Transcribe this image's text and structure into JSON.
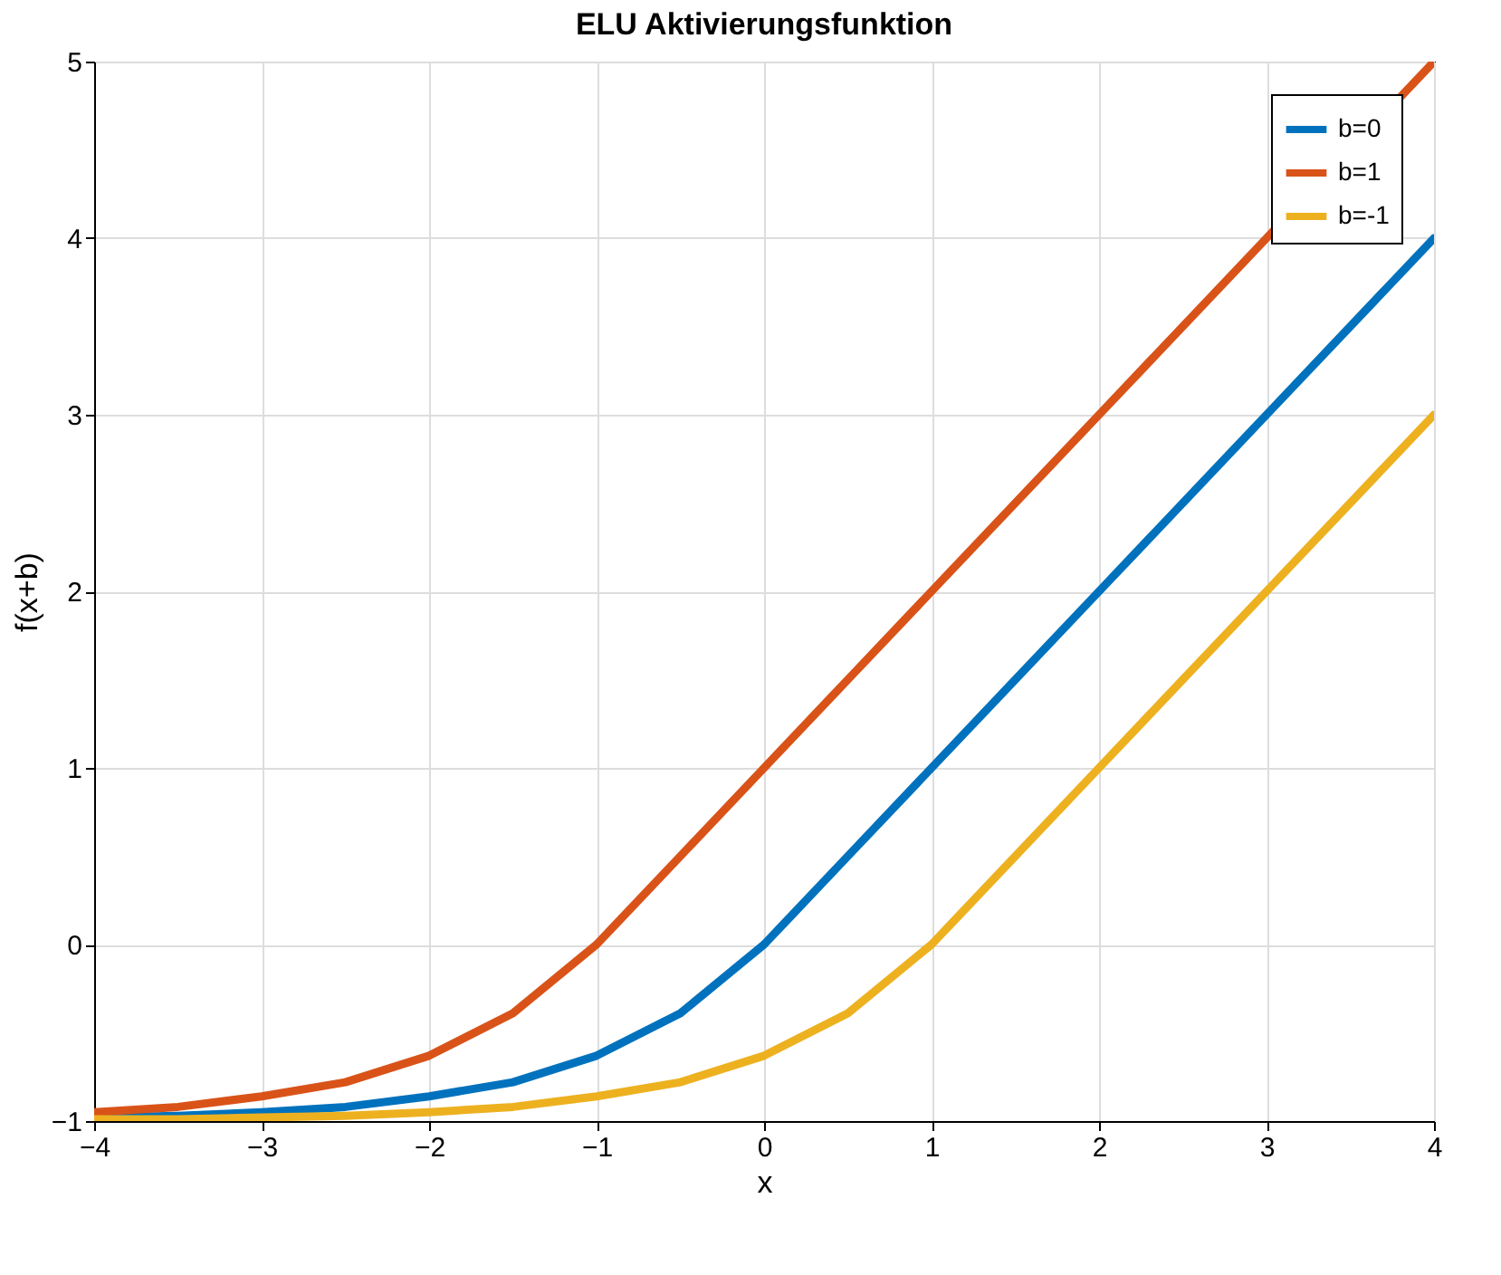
{
  "chart_data": {
    "type": "line",
    "title": "ELU Aktivierungsfunktion",
    "xlabel": "x",
    "ylabel": "f(x+b)",
    "x": [
      -4,
      -3.5,
      -3,
      -2.5,
      -2,
      -1.5,
      -1,
      -0.5,
      0,
      0.5,
      1,
      2,
      3,
      4
    ],
    "series": [
      {
        "name": "b=0",
        "color": "#0072bd",
        "values": [
          -0.98,
          -0.97,
          -0.95,
          -0.92,
          -0.86,
          -0.78,
          -0.63,
          -0.39,
          0,
          0.5,
          1,
          2,
          3,
          4
        ]
      },
      {
        "name": "b=1",
        "color": "#d95319",
        "values": [
          -0.95,
          -0.92,
          -0.86,
          -0.78,
          -0.63,
          -0.39,
          0,
          0.5,
          1,
          1.5,
          2,
          3,
          4,
          5
        ]
      },
      {
        "name": "b=-1",
        "color": "#edb120",
        "values": [
          -0.99,
          -0.99,
          -0.98,
          -0.97,
          -0.95,
          -0.92,
          -0.86,
          -0.78,
          -0.63,
          -0.39,
          0,
          1,
          2,
          3
        ]
      }
    ],
    "xlim": [
      -4,
      4
    ],
    "xticks": [
      -4,
      -3,
      -2,
      -1,
      0,
      1,
      2,
      3,
      4
    ],
    "ylim": [
      -1,
      5
    ],
    "yticks": [
      -1,
      0,
      1,
      2,
      3,
      4,
      5
    ],
    "grid": true,
    "legend": "top right",
    "line_style": "solid",
    "marker": "none"
  }
}
